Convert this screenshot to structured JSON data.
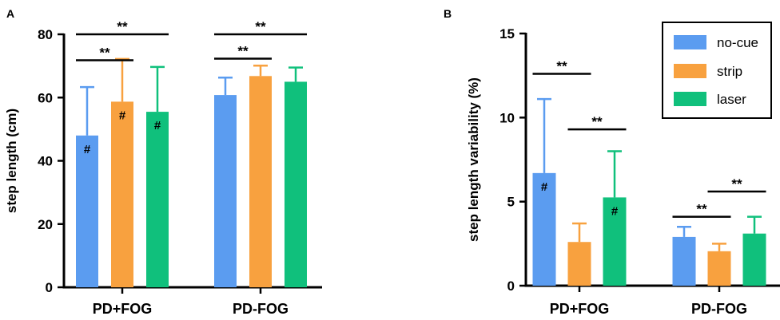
{
  "chart_data": [
    {
      "panel": "A",
      "type": "bar",
      "ylabel": "step length (cm)",
      "xlabel": "",
      "ylim": [
        0,
        80
      ],
      "yticks": [
        "0",
        "20",
        "40",
        "60",
        "80"
      ],
      "categories": [
        "PD+FOG",
        "PD-FOG"
      ],
      "series": [
        {
          "name": "no-cue",
          "color": "#5b9cf0",
          "values": [
            48,
            60.8
          ],
          "errors": [
            15.3,
            5.5
          ]
        },
        {
          "name": "strip",
          "color": "#f8a13f",
          "values": [
            58.7,
            66.8
          ],
          "errors": [
            13.5,
            3.3
          ]
        },
        {
          "name": "laser",
          "color": "#10c07c",
          "values": [
            55.5,
            65
          ],
          "errors": [
            14.2,
            4.5
          ]
        }
      ],
      "hash_marks": [
        {
          "series": 0,
          "category": 0,
          "label": "#"
        },
        {
          "series": 1,
          "category": 0,
          "label": "#"
        },
        {
          "series": 2,
          "category": 0,
          "label": "#"
        }
      ],
      "significance": [
        {
          "category": 0,
          "from": 0,
          "to": 1,
          "value": 71.8,
          "label": "**"
        },
        {
          "category": 0,
          "from": 0,
          "to": 2,
          "value": 80,
          "label": "**"
        },
        {
          "category": 1,
          "from": 0,
          "to": 1,
          "value": 72.3,
          "label": "**"
        },
        {
          "category": 1,
          "from": 0,
          "to": 2,
          "value": 80,
          "label": "**"
        }
      ]
    },
    {
      "panel": "B",
      "type": "bar",
      "ylabel": "step length variability (%)",
      "xlabel": "",
      "ylim": [
        0,
        15
      ],
      "yticks": [
        "0",
        "5",
        "10",
        "15"
      ],
      "categories": [
        "PD+FOG",
        "PD-FOG"
      ],
      "series": [
        {
          "name": "no-cue",
          "color": "#5b9cf0",
          "values": [
            6.7,
            2.9
          ],
          "errors": [
            4.4,
            0.6
          ]
        },
        {
          "name": "strip",
          "color": "#f8a13f",
          "values": [
            2.6,
            2.05
          ],
          "errors": [
            1.1,
            0.45
          ]
        },
        {
          "name": "laser",
          "color": "#10c07c",
          "values": [
            5.25,
            3.1
          ],
          "errors": [
            2.75,
            1.0
          ]
        }
      ],
      "legend": {
        "position": "top-right",
        "entries": [
          "no-cue",
          "strip",
          "laser"
        ]
      },
      "hash_marks": [
        {
          "series": 0,
          "category": 0,
          "label": "#"
        },
        {
          "series": 2,
          "category": 0,
          "label": "#"
        }
      ],
      "significance": [
        {
          "category": 0,
          "from": 0,
          "to": 1,
          "value": 12.6,
          "label": "**"
        },
        {
          "category": 0,
          "from": 1,
          "to": 2,
          "value": 9.3,
          "label": "**"
        },
        {
          "category": 1,
          "from": 0,
          "to": 1,
          "value": 4.1,
          "label": "**"
        },
        {
          "category": 1,
          "from": 1,
          "to": 2,
          "value": 5.6,
          "label": "**"
        }
      ]
    }
  ]
}
